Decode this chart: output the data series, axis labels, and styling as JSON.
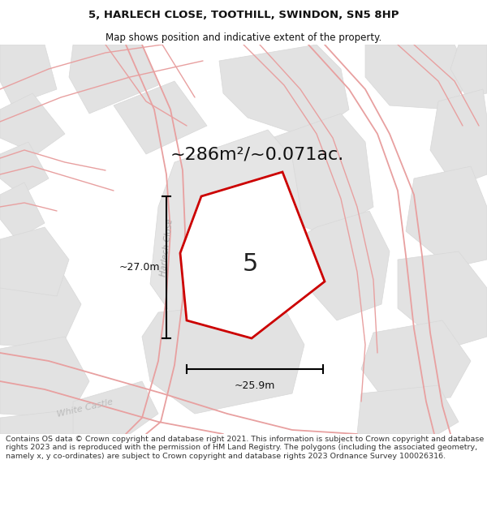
{
  "title_line1": "5, HARLECH CLOSE, TOOTHILL, SWINDON, SN5 8HP",
  "title_line2": "Map shows position and indicative extent of the property.",
  "area_label": "~286m²/~0.071ac.",
  "number_label": "5",
  "dim_vertical": "~27.0m",
  "dim_horizontal": "~25.9m",
  "street_label1": "Harlech Close",
  "street_label2": "White Castle",
  "footer_text": "Contains OS data © Crown copyright and database right 2021. This information is subject to Crown copyright and database rights 2023 and is reproduced with the permission of HM Land Registry. The polygons (including the associated geometry, namely x, y co-ordinates) are subject to Crown copyright and database rights 2023 Ordnance Survey 100026316.",
  "bg_color": "#ffffff",
  "map_bg": "#f0f0f0",
  "plot_edge": "#cc0000",
  "block_color": "#e2e2e2",
  "block_edge": "#d8d8d8",
  "road_color": "#e8a0a0",
  "fig_width": 6.0,
  "fig_height": 6.25,
  "title_fontsize": 9.5,
  "subtitle_fontsize": 8.5,
  "footer_fontsize": 6.8,
  "area_fontsize": 16,
  "number_fontsize": 22,
  "dim_fontsize": 9
}
